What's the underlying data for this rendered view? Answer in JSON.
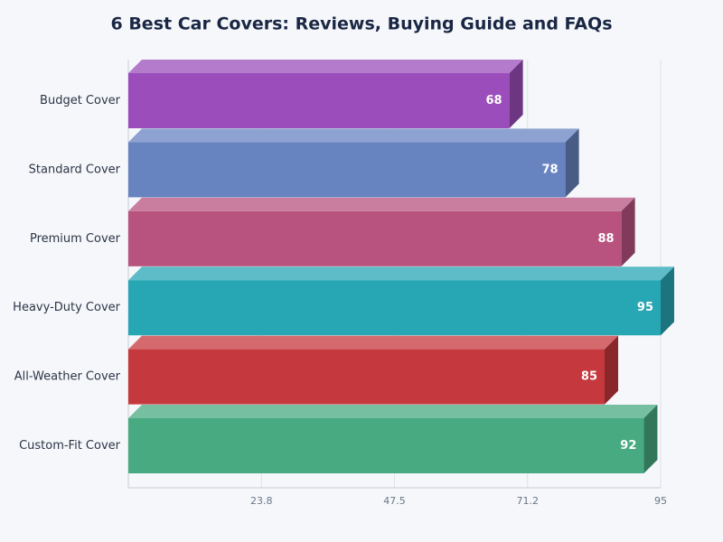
{
  "chart_data": {
    "type": "bar3d",
    "orientation": "horizontal",
    "title": "6 Best Car Covers: Reviews, Buying Guide and FAQs",
    "categories": [
      "Budget Cover",
      "Standard Cover",
      "Premium Cover",
      "Heavy-Duty Cover",
      "All-Weather Cover",
      "Custom-Fit Cover"
    ],
    "values": [
      68,
      78,
      88,
      95,
      85,
      92
    ],
    "colors": [
      "#9b4dbb",
      "#6783c0",
      "#b8537f",
      "#27a6b4",
      "#c5383d",
      "#48aa80"
    ],
    "xlim": [
      0,
      95
    ],
    "xticks": [
      {
        "value": 23.75,
        "label": "23.8"
      },
      47.5,
      {
        "value": 71.25,
        "label": "71.2"
      },
      95
    ],
    "grid": true
  }
}
